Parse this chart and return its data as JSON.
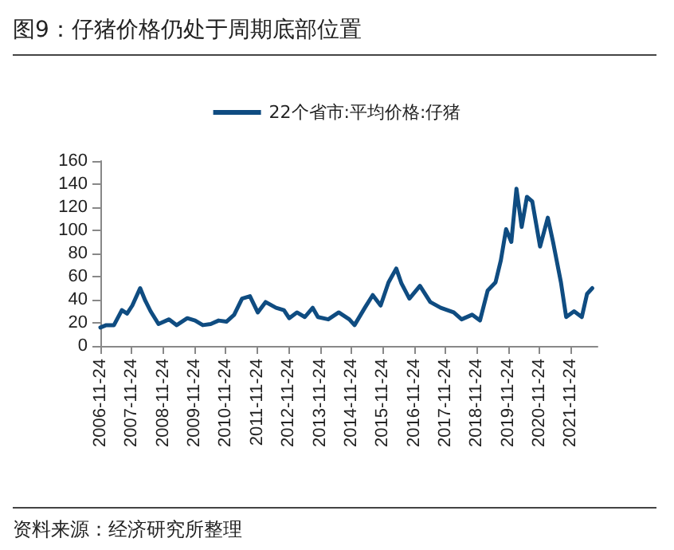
{
  "chart_data": {
    "type": "line",
    "title": "图9：仔猪价格仍处于周期底部位置",
    "annotations": [
      "资料来源：经济研究所整理"
    ],
    "x": [
      "2006-11-24",
      "2007-02",
      "2007-05",
      "2007-08",
      "2007-10",
      "2007-12",
      "2008-03",
      "2008-05",
      "2008-07",
      "2008-10",
      "2009-02",
      "2009-05",
      "2009-09",
      "2009-12",
      "2010-03",
      "2010-06",
      "2010-09",
      "2010-12",
      "2011-03",
      "2011-06",
      "2011-09",
      "2011-12",
      "2012-03",
      "2012-07",
      "2012-10",
      "2012-12",
      "2013-03",
      "2013-06",
      "2013-09",
      "2013-11",
      "2014-03",
      "2014-07",
      "2014-11",
      "2015-01",
      "2015-05",
      "2015-08",
      "2015-11",
      "2016-02",
      "2016-05",
      "2016-07",
      "2016-10",
      "2017-02",
      "2017-06",
      "2017-10",
      "2018-03",
      "2018-06",
      "2018-10",
      "2019-01",
      "2019-04",
      "2019-07",
      "2019-09",
      "2019-11",
      "2020-01",
      "2020-03",
      "2020-05",
      "2020-07",
      "2020-09",
      "2020-12",
      "2021-03",
      "2021-05",
      "2021-08",
      "2021-10",
      "2022-01",
      "2022-04",
      "2022-06",
      "2022-08"
    ],
    "series": [
      {
        "name": "22个省市:平均价格:仔猪",
        "color": "#0f4c81",
        "values": [
          16,
          18,
          18,
          31,
          28,
          35,
          50,
          39,
          30,
          19,
          23,
          18,
          24,
          22,
          18,
          19,
          22,
          21,
          27,
          41,
          43,
          29,
          38,
          33,
          31,
          24,
          29,
          25,
          33,
          25,
          23,
          29,
          23,
          18,
          33,
          44,
          35,
          55,
          67,
          54,
          41,
          52,
          38,
          33,
          29,
          23,
          27,
          22,
          48,
          55,
          74,
          101,
          90,
          136,
          103,
          129,
          125,
          86,
          111,
          90,
          55,
          25,
          30,
          25,
          45,
          50
        ]
      }
    ],
    "xlim": [
      "2006-11-24",
      "2022-10-01"
    ],
    "xticks": [
      "2006-11-24",
      "2007-11-24",
      "2008-11-24",
      "2009-11-24",
      "2010-11-24",
      "2011-11-24",
      "2012-11-24",
      "2013-11-24",
      "2014-11-24",
      "2015-11-24",
      "2016-11-24",
      "2017-11-24",
      "2018-11-24",
      "2019-11-24",
      "2020-11-24",
      "2021-11-24"
    ],
    "ylim": [
      0,
      160
    ],
    "yticks": [
      0,
      20,
      40,
      60,
      80,
      100,
      120,
      140,
      160
    ],
    "grid": false,
    "legend": "top",
    "marker": "none",
    "line_style": "solid"
  }
}
